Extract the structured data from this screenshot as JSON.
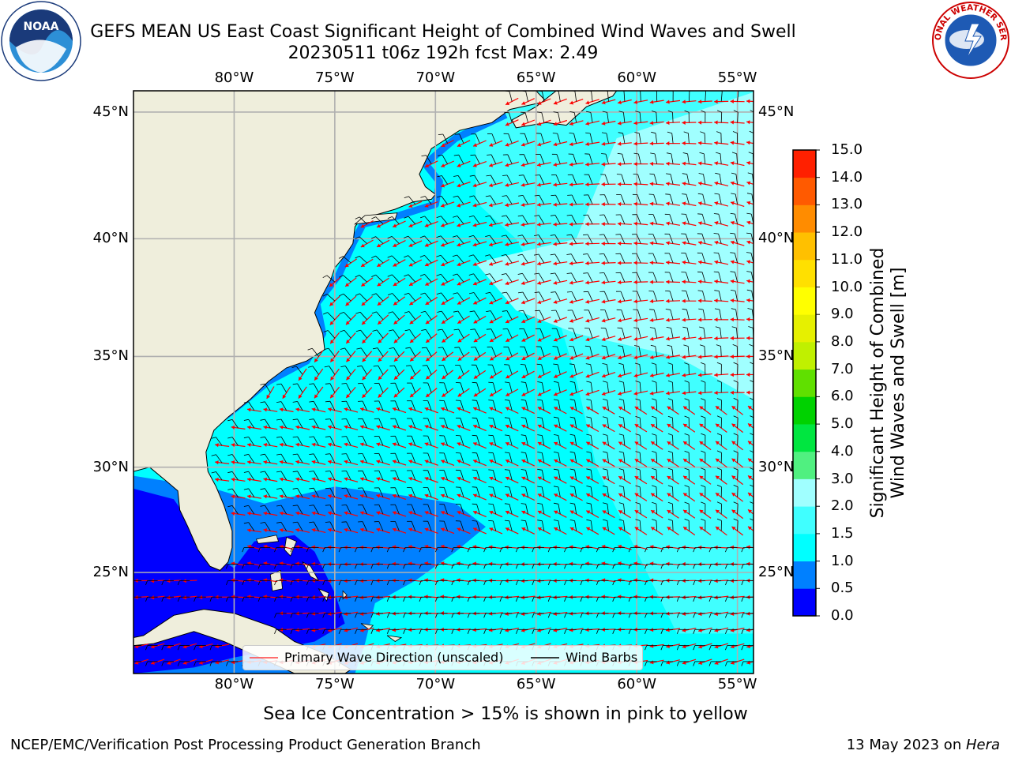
{
  "title": {
    "line1": "GEFS MEAN US East Coast Significant Height of Combined Wind Waves and Swell",
    "line2": "20230511 t06z 192h fcst   Max: 2.49"
  },
  "map": {
    "lon_ticks": [
      "80°W",
      "75°W",
      "70°W",
      "65°W",
      "60°W",
      "55°W"
    ],
    "lat_ticks": [
      "45°N",
      "40°N",
      "35°N",
      "30°N",
      "25°N"
    ],
    "lon_range": [
      -85,
      -54.2
    ],
    "lat_range": [
      20,
      45.8
    ],
    "colors": {
      "land": "#efeedc",
      "grid": "#b0b0b0",
      "arrow": "#ff0000",
      "barb": "#000000"
    }
  },
  "legend": {
    "wave_direction": "Primary Wave Direction (unscaled)",
    "wind_barbs": "Wind Barbs"
  },
  "colorbar": {
    "label_line1": "Significant Height of Combined",
    "label_line2": "Wind Waves and Swell [m]",
    "ticks": [
      "0.0",
      "0.5",
      "1.0",
      "1.5",
      "2.0",
      "3.0",
      "4.0",
      "5.0",
      "6.0",
      "7.0",
      "8.0",
      "9.0",
      "10.0",
      "11.0",
      "12.0",
      "13.0",
      "14.0",
      "15.0"
    ],
    "colors": [
      "#0000ff",
      "#0080ff",
      "#00ffff",
      "#40ffff",
      "#a0ffff",
      "#50f080",
      "#00e640",
      "#00d200",
      "#60e000",
      "#c0f000",
      "#e6f000",
      "#ffff00",
      "#ffe000",
      "#ffc000",
      "#ff8c00",
      "#ff5a00",
      "#ff2000"
    ]
  },
  "logos": {
    "left": "NOAA",
    "right": "NATIONAL WEATHER SERVICE"
  },
  "note": "Sea Ice Concentration > 15% is shown in pink to yellow",
  "footer": {
    "left": "NCEP/EMC/Verification Post Processing Product Generation Branch",
    "date": "13 May 2023 on ",
    "machine": "Hera"
  }
}
